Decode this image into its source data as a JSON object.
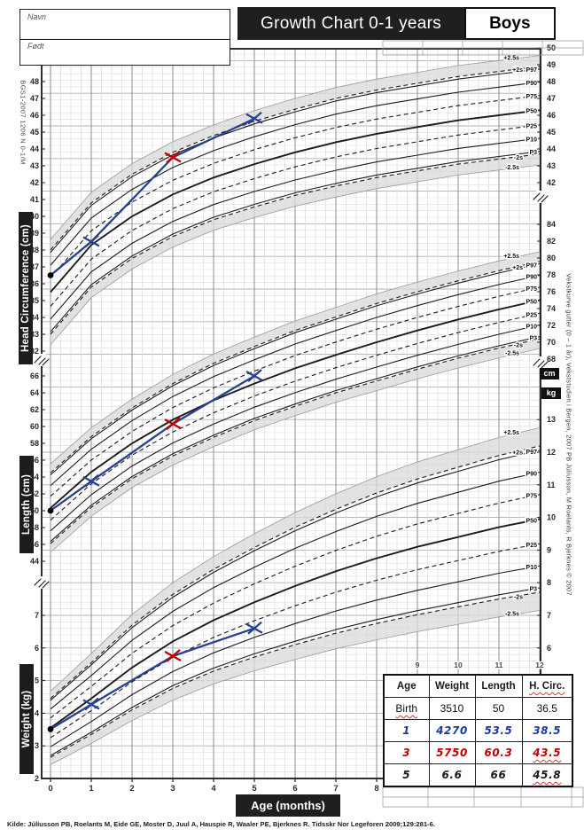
{
  "header": {
    "name_label": "Navn",
    "dob_label": "Født",
    "title": "Growth Chart 0-1 years",
    "sex": "Boys"
  },
  "side_labels": {
    "left_code": "BGS1-2007 1206 N 0-1/M",
    "right_credit": "Vekstkurve gutter (0 – 1 år), Vekststudien i Bergen, 2007     PB Júlíusson, M Roelants, R Bjerknes © 2007",
    "unit_cm": "cm",
    "unit_kg": "kg"
  },
  "chart_data": {
    "type": "line",
    "title": "Growth Chart 0-1 years (Boys)",
    "xlabel": "Age  (months)",
    "x": [
      0,
      1,
      2,
      3,
      4,
      5,
      6,
      7,
      8,
      9,
      10,
      11,
      12
    ],
    "x_ticks_bottom": [
      0,
      1,
      2,
      3,
      4,
      5,
      6,
      7,
      8
    ],
    "x_ticks_upper": [
      9,
      10,
      11,
      12
    ],
    "percentile_labels": [
      "+2.5s",
      "+2s",
      "P97",
      "P90",
      "P75",
      "P50",
      "P25",
      "P10",
      "P3",
      "-2s",
      "-2.5s"
    ],
    "z_scores": {
      "+2.5s": 2.5,
      "+2s": 2.0,
      "P97": 1.881,
      "P90": 1.282,
      "P75": 0.674,
      "P50": 0,
      "P25": -0.674,
      "P10": -1.282,
      "P3": -1.881,
      "-2s": -2.0,
      "-2.5s": -2.5
    },
    "marker_colors": [
      "#000000",
      "#27418f",
      "#c00000",
      "#27418f"
    ],
    "series_color": "#27418f",
    "band_color": "#d9d9d9",
    "panels": [
      {
        "id": "head",
        "label": "Head Circumference (cm)",
        "unit": "cm",
        "p50": [
          35.5,
          38.3,
          40.0,
          41.3,
          42.3,
          43.1,
          43.8,
          44.4,
          44.9,
          45.3,
          45.7,
          46.0,
          46.3
        ],
        "sd": [
          1.25,
          1.25,
          1.25,
          1.25,
          1.25,
          1.27,
          1.28,
          1.3,
          1.3,
          1.3,
          1.3,
          1.3,
          1.3
        ],
        "axis_left_ticks": [
          48,
          47,
          46,
          45,
          44,
          43,
          42,
          41,
          40,
          39,
          38,
          37,
          36,
          35,
          34,
          33,
          32
        ],
        "axis_right_ticks": [
          50,
          49,
          48,
          47,
          46,
          45,
          44,
          43,
          42
        ],
        "patient": {
          "x": [
            0,
            1,
            3,
            5
          ],
          "y": [
            36.5,
            38.5,
            43.5,
            45.8
          ]
        }
      },
      {
        "id": "length",
        "label": "Length (cm)",
        "unit": "cm",
        "p50": [
          50.3,
          54.6,
          58.0,
          60.8,
          63.1,
          65.1,
          66.9,
          68.5,
          70.0,
          71.4,
          72.7,
          73.9,
          75.0
        ],
        "sd": [
          2.1,
          2.1,
          2.1,
          2.15,
          2.2,
          2.2,
          2.25,
          2.25,
          2.3,
          2.3,
          2.3,
          2.3,
          2.3
        ],
        "axis_left_ticks": [
          66,
          64,
          62,
          60,
          58,
          56,
          54,
          52,
          50,
          48,
          46,
          44
        ],
        "axis_right_ticks": [
          84,
          82,
          80,
          78,
          76,
          74,
          72,
          70,
          68
        ],
        "patient": {
          "x": [
            0,
            1,
            3,
            5
          ],
          "y": [
            50,
            53.5,
            60.3,
            66
          ]
        }
      },
      {
        "id": "weight",
        "label": "Weight  (kg)",
        "unit": "kg",
        "p50": [
          3.55,
          4.45,
          5.4,
          6.2,
          6.85,
          7.4,
          7.9,
          8.35,
          8.75,
          9.1,
          9.4,
          9.7,
          9.95
        ],
        "sd": [
          0.45,
          0.55,
          0.65,
          0.72,
          0.78,
          0.84,
          0.9,
          0.95,
          1.0,
          1.04,
          1.07,
          1.1,
          1.12
        ],
        "axis_left_ticks": [
          7,
          6,
          5,
          4,
          3,
          2
        ],
        "axis_right_ticks": [
          13,
          12,
          11,
          10,
          9,
          8,
          7,
          6
        ],
        "patient": {
          "x": [
            0,
            1,
            3,
            5
          ],
          "y": [
            3.51,
            4.27,
            5.75,
            6.6
          ]
        }
      }
    ]
  },
  "table": {
    "headers": [
      "Age",
      "Weight",
      "Length",
      "H. Circ."
    ],
    "rows": [
      {
        "age": "Birth",
        "weight": "3510",
        "length": "50",
        "hc": "36.5"
      },
      {
        "age": "1",
        "weight": "4270",
        "length": "53.5",
        "hc": "38.5"
      },
      {
        "age": "3",
        "weight": "5750",
        "length": "60.3",
        "hc": "43.5"
      },
      {
        "age": "5",
        "weight": "6.6",
        "length": "66",
        "hc": "45.8"
      }
    ]
  },
  "source": "Kilde: Júlíusson PB, Roelants M, Eide GE, Moster D, Juul A, Hauspie R, Waaler PE, Bjerknes R. Tidsskr Nor Legeforen 2009;129:281-6."
}
